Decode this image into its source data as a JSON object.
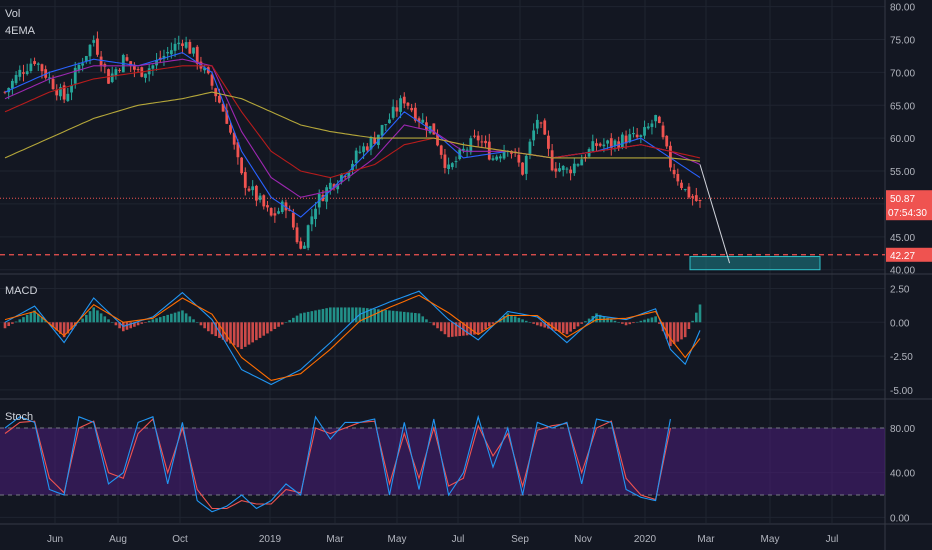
{
  "colors": {
    "background": "#131722",
    "grid": "#1f2430",
    "axis_text": "#b2b5be",
    "up": "#26a69a",
    "down": "#ef5350",
    "ema_fast": "#2962ff",
    "ema_mid": "#9c27b0",
    "ema_slow1": "#b71c1c",
    "ema_slow2": "#b5a73a",
    "macd_line": "#2196f3",
    "signal_line": "#ff6d00",
    "stoch_k": "#2196f3",
    "stoch_d": "#ef5350",
    "stoch_band": "#4a1d7a",
    "support": "#ef5350",
    "target_box": "#1e8c94",
    "projection": "#d1d4dc"
  },
  "indicators": {
    "vol_label": "Vol",
    "ema_label": "4EMA",
    "macd_label": "MACD",
    "stoch_label": "Stoch"
  },
  "price_axis": {
    "ticks": [
      "80.00",
      "75.00",
      "70.00",
      "65.00",
      "60.00",
      "55.00",
      "45.00",
      "40.00"
    ],
    "current_price": "50.87",
    "countdown": "07:54:30",
    "support_level": "42.27"
  },
  "macd_axis": {
    "ticks": [
      "2.50",
      "0.00",
      "-2.50",
      "-5.00"
    ]
  },
  "stoch_axis": {
    "ticks": [
      "80.00",
      "40.00",
      "0.00"
    ]
  },
  "time_axis": {
    "labels": [
      "Jun",
      "Aug",
      "Oct",
      "2019",
      "Mar",
      "May",
      "Jul",
      "Sep",
      "Nov",
      "2020",
      "Mar",
      "May",
      "Jul"
    ]
  },
  "chart_data": [
    {
      "type": "candlestick",
      "title": "",
      "price_range": [
        39.5,
        81
      ],
      "current_price": 50.87,
      "support_level": 42.27,
      "target_zone": [
        40,
        42
      ],
      "price_path": [
        [
          0,
          67
        ],
        [
          4,
          70
        ],
        [
          8,
          72
        ],
        [
          12,
          69
        ],
        [
          16,
          66
        ],
        [
          20,
          71
        ],
        [
          24,
          75
        ],
        [
          28,
          69
        ],
        [
          32,
          72
        ],
        [
          36,
          70
        ],
        [
          40,
          71
        ],
        [
          44,
          73
        ],
        [
          48,
          75
        ],
        [
          52,
          72
        ],
        [
          56,
          68
        ],
        [
          60,
          63
        ],
        [
          64,
          54
        ],
        [
          68,
          51
        ],
        [
          72,
          48
        ],
        [
          76,
          50
        ],
        [
          80,
          43
        ],
        [
          84,
          50
        ],
        [
          88,
          53
        ],
        [
          92,
          55
        ],
        [
          96,
          58
        ],
        [
          100,
          60
        ],
        [
          104,
          63
        ],
        [
          108,
          66
        ],
        [
          112,
          63
        ],
        [
          116,
          61
        ],
        [
          120,
          55
        ],
        [
          124,
          58
        ],
        [
          128,
          60
        ],
        [
          132,
          57
        ],
        [
          136,
          59
        ],
        [
          140,
          55
        ],
        [
          144,
          63
        ],
        [
          148,
          56
        ],
        [
          152,
          55
        ],
        [
          156,
          57
        ],
        [
          160,
          59
        ],
        [
          164,
          59
        ],
        [
          168,
          60
        ],
        [
          172,
          60
        ],
        [
          176,
          63
        ],
        [
          180,
          56
        ],
        [
          184,
          52
        ],
        [
          188,
          50
        ]
      ],
      "emas": {
        "ema_fast": [
          [
            0,
            67
          ],
          [
            12,
            70
          ],
          [
            24,
            72
          ],
          [
            36,
            71
          ],
          [
            48,
            73
          ],
          [
            56,
            70
          ],
          [
            64,
            58
          ],
          [
            72,
            51
          ],
          [
            80,
            48
          ],
          [
            88,
            52
          ],
          [
            100,
            59
          ],
          [
            108,
            64
          ],
          [
            116,
            61
          ],
          [
            124,
            57
          ],
          [
            136,
            58
          ],
          [
            148,
            57
          ],
          [
            160,
            58
          ],
          [
            172,
            60
          ],
          [
            180,
            57
          ],
          [
            188,
            54
          ]
        ],
        "ema_mid": [
          [
            0,
            66
          ],
          [
            12,
            69
          ],
          [
            24,
            71
          ],
          [
            36,
            71
          ],
          [
            48,
            72
          ],
          [
            56,
            71
          ],
          [
            64,
            61
          ],
          [
            72,
            54
          ],
          [
            80,
            51
          ],
          [
            88,
            52
          ],
          [
            100,
            57
          ],
          [
            108,
            62
          ],
          [
            116,
            61
          ],
          [
            124,
            58
          ],
          [
            136,
            58
          ],
          [
            148,
            57
          ],
          [
            160,
            58
          ],
          [
            172,
            59
          ],
          [
            180,
            58
          ],
          [
            188,
            56
          ]
        ],
        "ema_slow1": [
          [
            0,
            64
          ],
          [
            12,
            67
          ],
          [
            24,
            69
          ],
          [
            36,
            70
          ],
          [
            48,
            71
          ],
          [
            56,
            71
          ],
          [
            64,
            64
          ],
          [
            72,
            58
          ],
          [
            80,
            55
          ],
          [
            88,
            54
          ],
          [
            100,
            56
          ],
          [
            108,
            59
          ],
          [
            116,
            60
          ],
          [
            124,
            59
          ],
          [
            136,
            58
          ],
          [
            148,
            57
          ],
          [
            160,
            58
          ],
          [
            172,
            59
          ],
          [
            180,
            58
          ],
          [
            188,
            57
          ]
        ],
        "ema_slow2": [
          [
            0,
            57
          ],
          [
            12,
            60
          ],
          [
            24,
            63
          ],
          [
            36,
            65
          ],
          [
            48,
            66
          ],
          [
            56,
            67
          ],
          [
            64,
            66
          ],
          [
            72,
            64
          ],
          [
            80,
            62
          ],
          [
            88,
            61
          ],
          [
            100,
            60
          ],
          [
            108,
            60
          ],
          [
            116,
            60
          ],
          [
            124,
            59
          ],
          [
            136,
            58
          ],
          [
            148,
            57
          ],
          [
            160,
            57
          ],
          [
            172,
            57
          ],
          [
            180,
            57
          ],
          [
            188,
            56.5
          ]
        ]
      },
      "projection": [
        [
          188,
          56
        ],
        [
          196,
          41
        ]
      ]
    },
    {
      "type": "line",
      "title": "MACD",
      "ylim": [
        -5.6,
        3.5
      ],
      "series": [
        {
          "name": "macd",
          "values": [
            [
              0,
              0
            ],
            [
              8,
              1.2
            ],
            [
              16,
              -1.5
            ],
            [
              24,
              1.8
            ],
            [
              32,
              -0.3
            ],
            [
              40,
              0.4
            ],
            [
              48,
              2.2
            ],
            [
              56,
              0.2
            ],
            [
              64,
              -3.5
            ],
            [
              72,
              -4.6
            ],
            [
              80,
              -3.5
            ],
            [
              88,
              -1.5
            ],
            [
              96,
              0.6
            ],
            [
              104,
              1.5
            ],
            [
              112,
              2.3
            ],
            [
              120,
              0.2
            ],
            [
              128,
              -1.3
            ],
            [
              136,
              0.8
            ],
            [
              144,
              0.4
            ],
            [
              152,
              -1.5
            ],
            [
              160,
              0.5
            ],
            [
              168,
              0.2
            ],
            [
              176,
              1.0
            ],
            [
              180,
              -2
            ],
            [
              184,
              -3.1
            ],
            [
              188,
              -0.6
            ]
          ]
        },
        {
          "name": "signal",
          "values": [
            [
              0,
              0.2
            ],
            [
              8,
              0.8
            ],
            [
              16,
              -1.0
            ],
            [
              24,
              1.3
            ],
            [
              32,
              0
            ],
            [
              40,
              0.3
            ],
            [
              48,
              1.8
            ],
            [
              56,
              0.6
            ],
            [
              64,
              -2.6
            ],
            [
              72,
              -4.3
            ],
            [
              80,
              -3.8
            ],
            [
              88,
              -2
            ],
            [
              96,
              0.1
            ],
            [
              104,
              1.1
            ],
            [
              112,
              2.0
            ],
            [
              120,
              0.7
            ],
            [
              128,
              -0.9
            ],
            [
              136,
              0.5
            ],
            [
              144,
              0.5
            ],
            [
              152,
              -1.1
            ],
            [
              160,
              0.2
            ],
            [
              168,
              0.3
            ],
            [
              176,
              0.8
            ],
            [
              180,
              -1.2
            ],
            [
              184,
              -2.6
            ],
            [
              188,
              -1.2
            ]
          ]
        }
      ]
    },
    {
      "type": "line",
      "title": "Stoch",
      "ylim": [
        -5,
        105
      ],
      "band": [
        20,
        80
      ],
      "series": [
        {
          "name": "k",
          "values": [
            [
              0,
              80
            ],
            [
              4,
              90
            ],
            [
              8,
              85
            ],
            [
              12,
              25
            ],
            [
              16,
              20
            ],
            [
              20,
              90
            ],
            [
              24,
              85
            ],
            [
              28,
              30
            ],
            [
              32,
              40
            ],
            [
              36,
              85
            ],
            [
              40,
              90
            ],
            [
              44,
              30
            ],
            [
              48,
              85
            ],
            [
              52,
              15
            ],
            [
              56,
              5
            ],
            [
              60,
              10
            ],
            [
              64,
              20
            ],
            [
              68,
              8
            ],
            [
              72,
              15
            ],
            [
              76,
              30
            ],
            [
              80,
              20
            ],
            [
              84,
              90
            ],
            [
              88,
              70
            ],
            [
              92,
              85
            ],
            [
              96,
              85
            ],
            [
              100,
              88
            ],
            [
              104,
              20
            ],
            [
              108,
              85
            ],
            [
              112,
              25
            ],
            [
              116,
              88
            ],
            [
              120,
              20
            ],
            [
              124,
              40
            ],
            [
              128,
              90
            ],
            [
              132,
              45
            ],
            [
              136,
              80
            ],
            [
              140,
              20
            ],
            [
              144,
              85
            ],
            [
              148,
              80
            ],
            [
              152,
              85
            ],
            [
              156,
              30
            ],
            [
              160,
              88
            ],
            [
              164,
              85
            ],
            [
              168,
              25
            ],
            [
              172,
              18
            ],
            [
              176,
              15
            ],
            [
              180,
              88
            ]
          ]
        },
        {
          "name": "d",
          "values": [
            [
              0,
              75
            ],
            [
              4,
              85
            ],
            [
              8,
              86
            ],
            [
              12,
              35
            ],
            [
              16,
              22
            ],
            [
              20,
              80
            ],
            [
              24,
              86
            ],
            [
              28,
              40
            ],
            [
              32,
              35
            ],
            [
              36,
              75
            ],
            [
              40,
              88
            ],
            [
              44,
              40
            ],
            [
              48,
              80
            ],
            [
              52,
              25
            ],
            [
              56,
              8
            ],
            [
              60,
              8
            ],
            [
              64,
              15
            ],
            [
              68,
              12
            ],
            [
              72,
              12
            ],
            [
              76,
              25
            ],
            [
              80,
              22
            ],
            [
              84,
              80
            ],
            [
              88,
              75
            ],
            [
              92,
              80
            ],
            [
              96,
              85
            ],
            [
              100,
              86
            ],
            [
              104,
              30
            ],
            [
              108,
              75
            ],
            [
              112,
              35
            ],
            [
              116,
              80
            ],
            [
              120,
              28
            ],
            [
              124,
              35
            ],
            [
              128,
              82
            ],
            [
              132,
              55
            ],
            [
              136,
              75
            ],
            [
              140,
              28
            ],
            [
              144,
              78
            ],
            [
              148,
              82
            ],
            [
              152,
              84
            ],
            [
              156,
              40
            ],
            [
              160,
              80
            ],
            [
              164,
              86
            ],
            [
              168,
              35
            ],
            [
              172,
              20
            ],
            [
              176,
              16
            ],
            [
              180,
              80
            ]
          ]
        }
      ]
    }
  ]
}
